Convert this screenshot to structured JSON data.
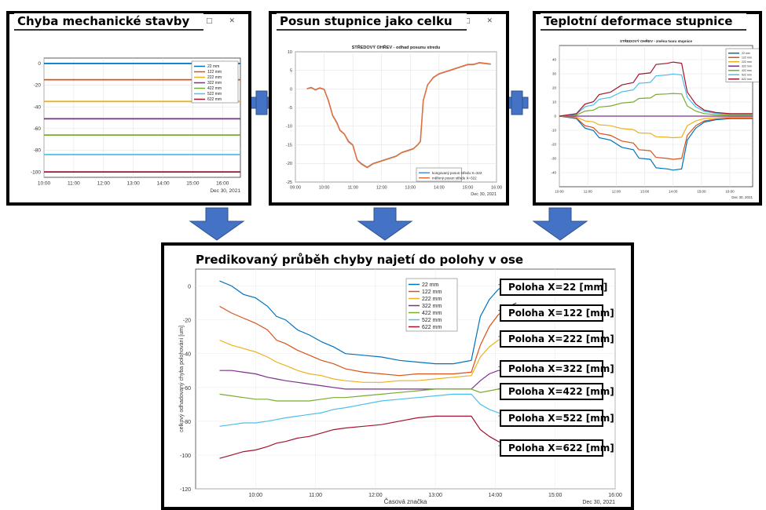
{
  "panels": {
    "mech": {
      "title": "Chyba mechanické stavby"
    },
    "shift": {
      "title": "Posun stupnice jako celku"
    },
    "thermal": {
      "title": "Teplotní deformace stupnice"
    },
    "pred": {
      "title": "Predikovaný průběh chyby najetí do polohy v ose"
    }
  },
  "window_controls": "– □ ✕",
  "position_labels": [
    "Poloha X=22 [mm]",
    "Poloha X=122 [mm]",
    "Poloha X=222 [mm]",
    "Poloha X=322 [mm]",
    "Poloha X=422 [mm]",
    "Poloha X=522 [mm]",
    "Poloha X=622 [mm]"
  ],
  "colors": {
    "blue": "#0072bd",
    "orange": "#d95319",
    "yellow": "#edb120",
    "purple": "#7e2f8e",
    "green": "#77ac30",
    "cyan": "#4dbeee",
    "darkred": "#a2142f",
    "arrow": "#4472c4"
  },
  "chart_data": [
    {
      "type": "line",
      "x_ticks": [
        "10:00",
        "11:00",
        "12:00",
        "13:00",
        "14:00",
        "15:00",
        "16:00"
      ],
      "date_label": "Dec 30, 2021",
      "ylim": [
        -105,
        5
      ],
      "y_ticks": [
        0,
        -20,
        -40,
        -60,
        -80,
        -100
      ],
      "legend_placement": "top-right",
      "series": [
        {
          "name": "22 mm",
          "value": 0
        },
        {
          "name": "122 mm",
          "value": -15
        },
        {
          "name": "222 mm",
          "value": -35
        },
        {
          "name": "322 mm",
          "value": -51
        },
        {
          "name": "422 mm",
          "value": -66
        },
        {
          "name": "522 mm",
          "value": -84
        },
        {
          "name": "622 mm",
          "value": -100
        }
      ]
    },
    {
      "type": "line",
      "title": "STŘEDOVÝ OHŘEV - odhad posunu stredu",
      "x_ticks": [
        "09:00",
        "10:00",
        "11:00",
        "12:00",
        "13:00",
        "14:00",
        "15:00",
        "16:00"
      ],
      "date_label": "Dec 30, 2021",
      "ylim": [
        -25,
        10
      ],
      "y_ticks": [
        10,
        5,
        0,
        -5,
        -10,
        -15,
        -20,
        -25
      ],
      "legend_placement": "bottom-right",
      "series": [
        {
          "name": "korigovaný posun středu X=322",
          "x": [
            9.4,
            9.55,
            9.7,
            9.85,
            10.0,
            10.15,
            10.3,
            10.45,
            10.55,
            10.7,
            10.85,
            11.0,
            11.15,
            11.3,
            11.5,
            11.7,
            11.9,
            12.1,
            12.3,
            12.5,
            12.7,
            12.9,
            13.1,
            13.25,
            13.35,
            13.45,
            13.6,
            13.8,
            14.0,
            14.2,
            14.4,
            14.6,
            14.8,
            15.0,
            15.2,
            15.4,
            15.6,
            15.8
          ],
          "y": [
            0,
            0.3,
            -0.3,
            0.2,
            -0.2,
            -3,
            -7,
            -9,
            -11,
            -12,
            -14,
            -15,
            -19,
            -20,
            -21,
            -20,
            -19.5,
            -19,
            -18.5,
            -18,
            -17,
            -16.5,
            -16,
            -15,
            -14,
            -3,
            1,
            3,
            4,
            4.5,
            5,
            5.5,
            6,
            6.5,
            6.5,
            7,
            6.8,
            6.6
          ]
        },
        {
          "name": "měřený posun středu X=322",
          "x": [
            9.4,
            9.55,
            9.7,
            9.85,
            10.0,
            10.15,
            10.3,
            10.45,
            10.55,
            10.7,
            10.85,
            11.0,
            11.15,
            11.3,
            11.5,
            11.7,
            11.9,
            12.1,
            12.3,
            12.5,
            12.7,
            12.9,
            13.1,
            13.25,
            13.35,
            13.45,
            13.6,
            13.8,
            14.0,
            14.2,
            14.4,
            14.6,
            14.8,
            15.0,
            15.2,
            15.4,
            15.6,
            15.8
          ],
          "y": [
            0.1,
            0.4,
            -0.2,
            0.3,
            -0.1,
            -3.2,
            -7.2,
            -9.2,
            -11.1,
            -12.1,
            -14.2,
            -15.1,
            -19.1,
            -20.2,
            -21.1,
            -20.1,
            -19.6,
            -19.1,
            -18.6,
            -18.1,
            -17.1,
            -16.6,
            -16.1,
            -15.1,
            -14.1,
            -3.2,
            1.1,
            3.1,
            4.1,
            4.6,
            5.1,
            5.6,
            6.1,
            6.6,
            6.6,
            7.1,
            6.9,
            6.7
          ]
        }
      ]
    },
    {
      "type": "line",
      "title": "STŘEDOVÝ OHŘEV - změna tvaru stupnice",
      "x_ticks": [
        "10:00",
        "11:00",
        "12:00",
        "13:00",
        "14:00",
        "15:00",
        "16:00"
      ],
      "date_label": "Dec 30, 2021",
      "ylim": [
        -50,
        50
      ],
      "y_ticks": [
        40,
        30,
        20,
        10,
        0,
        -10,
        -20,
        -30,
        -40
      ],
      "legend_placement": "top-right",
      "series": [
        {
          "name": "22 mm",
          "scale": -1.0,
          "color": "blue"
        },
        {
          "name": "122 mm",
          "scale": -0.8,
          "color": "orange"
        },
        {
          "name": "222 mm",
          "scale": -0.4,
          "color": "yellow"
        },
        {
          "name": "322 mm",
          "scale": 0.0,
          "color": "purple"
        },
        {
          "name": "422 mm",
          "scale": 0.42,
          "color": "green"
        },
        {
          "name": "522 mm",
          "scale": 0.78,
          "color": "cyan"
        },
        {
          "name": "622 mm",
          "scale": 1.0,
          "color": "darkred"
        }
      ]
    },
    {
      "type": "line",
      "xlabel": "Časová značka",
      "ylabel": "celkový odhadovaný chyba polohování [um]",
      "x_ticks": [
        "10:00",
        "11:00",
        "12:00",
        "13:00",
        "14:00",
        "15:00",
        "16:00"
      ],
      "date_label": "Dec 30, 2021",
      "ylim": [
        -120,
        10
      ],
      "y_ticks": [
        0,
        -20,
        -40,
        -60,
        -80,
        -100,
        -120
      ],
      "legend_placement": "top-left",
      "series": [
        {
          "name": "22 mm",
          "color": "blue",
          "x": [
            9.4,
            9.6,
            9.8,
            10.0,
            10.2,
            10.35,
            10.5,
            10.7,
            10.9,
            11.1,
            11.3,
            11.5,
            11.8,
            12.1,
            12.4,
            12.7,
            13.0,
            13.3,
            13.6,
            13.75,
            13.9,
            14.05,
            14.2,
            14.35
          ],
          "y": [
            3,
            0,
            -5,
            -7,
            -12,
            -18,
            -20,
            -26,
            -29,
            -33,
            -36,
            -40,
            -41,
            -42,
            -44,
            -45,
            -46,
            -46,
            -44,
            -18,
            -8,
            -2,
            1,
            3
          ]
        },
        {
          "name": "122 mm",
          "color": "orange",
          "x": [
            9.4,
            9.6,
            9.8,
            10.0,
            10.2,
            10.35,
            10.5,
            10.7,
            10.9,
            11.1,
            11.3,
            11.5,
            11.8,
            12.1,
            12.4,
            12.7,
            13.0,
            13.3,
            13.6,
            13.75,
            13.9,
            14.05,
            14.2,
            14.35
          ],
          "y": [
            -12,
            -16,
            -19,
            -22,
            -26,
            -32,
            -34,
            -38,
            -41,
            -44,
            -46,
            -49,
            -51,
            -52,
            -53,
            -52,
            -52,
            -52,
            -51,
            -35,
            -24,
            -17,
            -13,
            -10
          ]
        },
        {
          "name": "222 mm",
          "color": "yellow",
          "x": [
            9.4,
            9.6,
            9.8,
            10.0,
            10.2,
            10.35,
            10.5,
            10.7,
            10.9,
            11.1,
            11.3,
            11.5,
            11.8,
            12.1,
            12.4,
            12.7,
            13.0,
            13.3,
            13.6,
            13.75,
            13.9,
            14.05,
            14.2,
            14.35
          ],
          "y": [
            -32,
            -35,
            -37,
            -39,
            -42,
            -45,
            -47,
            -50,
            -52,
            -53,
            -55,
            -56,
            -57,
            -57,
            -56,
            -56,
            -55,
            -54,
            -53,
            -42,
            -36,
            -32,
            -30,
            -29
          ]
        },
        {
          "name": "322 mm",
          "color": "purple",
          "x": [
            9.4,
            9.6,
            9.8,
            10.0,
            10.2,
            10.35,
            10.5,
            10.7,
            10.9,
            11.1,
            11.3,
            11.5,
            11.8,
            12.1,
            12.4,
            12.7,
            13.0,
            13.3,
            13.6,
            13.75,
            13.9,
            14.05,
            14.2,
            14.35
          ],
          "y": [
            -50,
            -50,
            -51,
            -52,
            -54,
            -55,
            -56,
            -57,
            -58,
            -59,
            -60,
            -61,
            -61,
            -61,
            -61,
            -61,
            -61,
            -61,
            -61,
            -56,
            -52,
            -50,
            -50,
            -50
          ]
        },
        {
          "name": "422 mm",
          "color": "green",
          "x": [
            9.4,
            9.6,
            9.8,
            10.0,
            10.2,
            10.35,
            10.5,
            10.7,
            10.9,
            11.1,
            11.3,
            11.5,
            11.8,
            12.1,
            12.4,
            12.7,
            13.0,
            13.3,
            13.6,
            13.75,
            13.9,
            14.05,
            14.2,
            14.35
          ],
          "y": [
            -64,
            -65,
            -66,
            -67,
            -67,
            -68,
            -68,
            -68,
            -68,
            -67,
            -66,
            -66,
            -65,
            -64,
            -63,
            -62,
            -61,
            -61,
            -61,
            -63,
            -62,
            -61,
            -60,
            -60
          ]
        },
        {
          "name": "522 mm",
          "color": "cyan",
          "x": [
            9.4,
            9.6,
            9.8,
            10.0,
            10.2,
            10.35,
            10.5,
            10.7,
            10.9,
            11.1,
            11.3,
            11.5,
            11.8,
            12.1,
            12.4,
            12.7,
            13.0,
            13.3,
            13.6,
            13.75,
            13.9,
            14.05,
            14.2,
            14.35
          ],
          "y": [
            -83,
            -82,
            -81,
            -81,
            -80,
            -79,
            -78,
            -77,
            -76,
            -75,
            -73,
            -72,
            -70,
            -68,
            -67,
            -66,
            -65,
            -64,
            -64,
            -70,
            -73,
            -75,
            -76,
            -77
          ]
        },
        {
          "name": "622 mm",
          "color": "darkred",
          "x": [
            9.4,
            9.6,
            9.8,
            10.0,
            10.2,
            10.35,
            10.5,
            10.7,
            10.9,
            11.1,
            11.3,
            11.5,
            11.8,
            12.1,
            12.4,
            12.7,
            13.0,
            13.3,
            13.6,
            13.75,
            13.9,
            14.05,
            14.2,
            14.35
          ],
          "y": [
            -102,
            -100,
            -98,
            -97,
            -95,
            -93,
            -92,
            -90,
            -89,
            -87,
            -85,
            -84,
            -83,
            -82,
            -80,
            -78,
            -77,
            -77,
            -77,
            -85,
            -89,
            -92,
            -94,
            -95
          ]
        }
      ]
    }
  ]
}
